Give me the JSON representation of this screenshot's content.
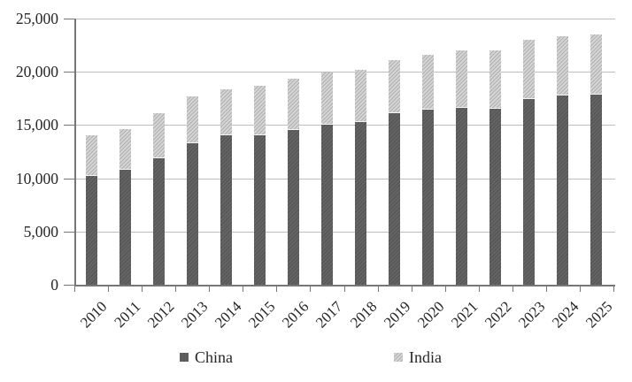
{
  "chart_data": {
    "type": "bar",
    "stacked": true,
    "title": "",
    "xlabel": "",
    "ylabel": "",
    "categories": [
      "2010",
      "2011",
      "2012",
      "2013",
      "2014",
      "2015",
      "2016",
      "2017",
      "2018",
      "2019",
      "2020",
      "2021",
      "2022",
      "2023",
      "2024",
      "2025"
    ],
    "series": [
      {
        "name": "China",
        "color": "#5c5c5c",
        "values": [
          10250,
          10800,
          11850,
          13250,
          14000,
          14000,
          14500,
          15000,
          15300,
          16100,
          16450,
          16600,
          16550,
          17450,
          17750,
          17850
        ]
      },
      {
        "name": "India",
        "color": "#c7c7c7",
        "values": [
          3750,
          3800,
          4300,
          4400,
          4350,
          4700,
          4850,
          4950,
          4900,
          5000,
          5150,
          5400,
          5450,
          5550,
          5600,
          5650
        ]
      }
    ],
    "ylim": [
      0,
      25000
    ],
    "yticks": [
      0,
      5000,
      10000,
      15000,
      20000,
      25000
    ],
    "ytick_labels": [
      "0",
      "5,000",
      "10,000",
      "15,000",
      "20,000",
      "25,000"
    ],
    "grid": true,
    "gridline_color": "#bdbdbd",
    "axis_color": "#767676",
    "text_color": "#262626",
    "legend_position": "bottom",
    "legend": [
      {
        "label": "China",
        "color": "#5c5c5c"
      },
      {
        "label": "India",
        "color": "#c7c7c7"
      }
    ]
  }
}
